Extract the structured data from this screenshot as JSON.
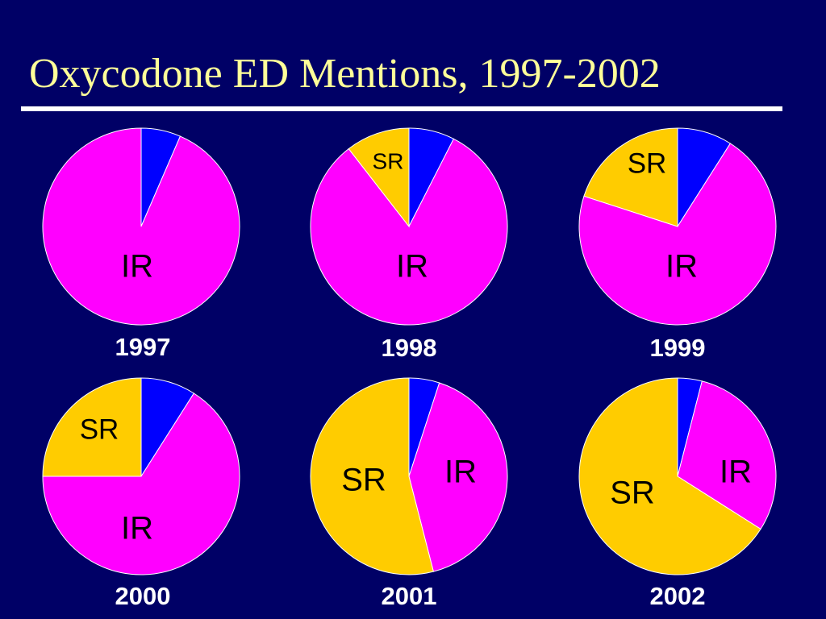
{
  "title": "Oxycodone ED Mentions, 1997-2002",
  "colors": {
    "background": "#000066",
    "title": "#FFFF99",
    "other": "#0000FF",
    "IR": "#FF00FF",
    "SR": "#FFCC00",
    "edge": "#FFFFFF"
  },
  "chart_data": {
    "type": "pie",
    "charts": [
      {
        "year": "1997",
        "slices": [
          {
            "label": "",
            "color": "other",
            "fraction": 0.065
          },
          {
            "label": "IR",
            "color": "IR",
            "fraction": 0.935
          }
        ]
      },
      {
        "year": "1998",
        "slices": [
          {
            "label": "",
            "color": "other",
            "fraction": 0.075
          },
          {
            "label": "IR",
            "color": "IR",
            "fraction": 0.82
          },
          {
            "label": "SR",
            "color": "SR",
            "fraction": 0.105
          }
        ]
      },
      {
        "year": "1999",
        "slices": [
          {
            "label": "",
            "color": "other",
            "fraction": 0.09
          },
          {
            "label": "IR",
            "color": "IR",
            "fraction": 0.71
          },
          {
            "label": "SR",
            "color": "SR",
            "fraction": 0.2
          }
        ]
      },
      {
        "year": "2000",
        "slices": [
          {
            "label": "",
            "color": "other",
            "fraction": 0.09
          },
          {
            "label": "IR",
            "color": "IR",
            "fraction": 0.66
          },
          {
            "label": "SR",
            "color": "SR",
            "fraction": 0.25
          }
        ]
      },
      {
        "year": "2001",
        "slices": [
          {
            "label": "",
            "color": "other",
            "fraction": 0.05
          },
          {
            "label": "IR",
            "color": "IR",
            "fraction": 0.41
          },
          {
            "label": "SR",
            "color": "SR",
            "fraction": 0.54
          }
        ]
      },
      {
        "year": "2002",
        "slices": [
          {
            "label": "",
            "color": "other",
            "fraction": 0.04
          },
          {
            "label": "IR",
            "color": "IR",
            "fraction": 0.3
          },
          {
            "label": "SR",
            "color": "SR",
            "fraction": 0.66
          }
        ]
      }
    ]
  }
}
